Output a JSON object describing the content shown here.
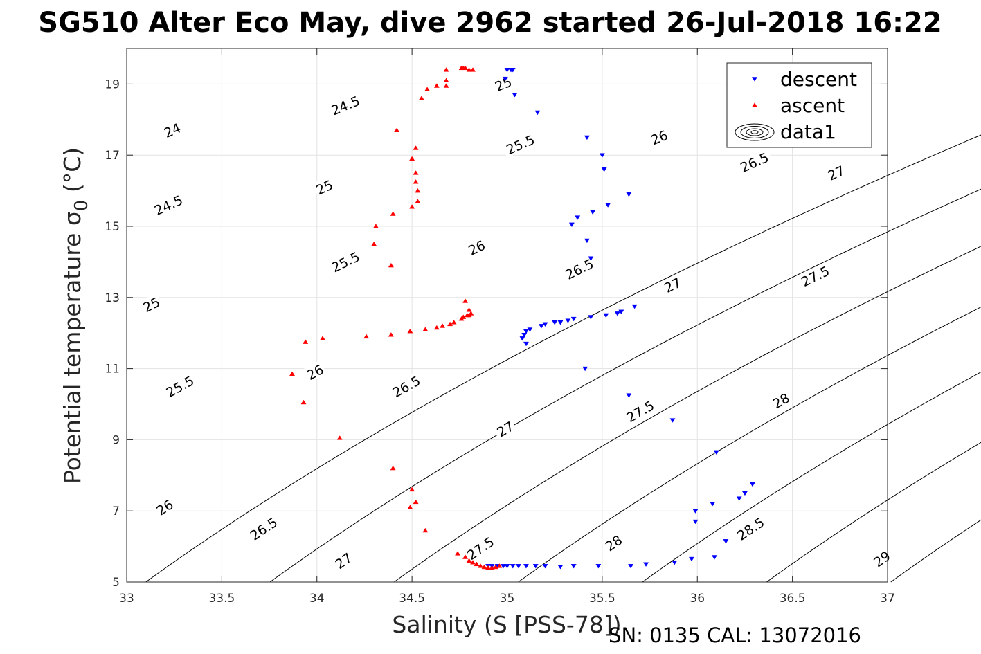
{
  "chart_data": {
    "type": "scatter",
    "title": "SG510 Alter Eco May, dive 2962 started 26-Jul-2018 16:22",
    "xlabel": "Salinity (S [PSS-78])",
    "ylabel_prefix": "Potential temperature ",
    "ylabel_symbol": "σ",
    "ylabel_sub": "0",
    "ylabel_suffix": " (°C)",
    "xlim": [
      33,
      37
    ],
    "ylim": [
      5,
      20
    ],
    "xticks": [
      33,
      33.5,
      34,
      34.5,
      35,
      35.5,
      36,
      36.5,
      37
    ],
    "xtick_labels": [
      "33",
      "33.5",
      "34",
      "34.5",
      "35",
      "35.5",
      "36",
      "36.5",
      "37"
    ],
    "yticks": [
      5,
      7,
      9,
      11,
      13,
      15,
      17,
      19
    ],
    "ytick_labels": [
      "5",
      "7",
      "9",
      "11",
      "13",
      "15",
      "17",
      "19"
    ],
    "grid": true,
    "legend_position": "top-right",
    "footer": "SN: 0135  CAL: 13072016",
    "series": [
      {
        "name": "descent",
        "marker": "triangle-down",
        "color": "#0000ff",
        "points": [
          [
            35.0,
            19.4
          ],
          [
            35.02,
            19.4
          ],
          [
            35.03,
            19.4
          ],
          [
            34.99,
            19.15
          ],
          [
            35.04,
            18.7
          ],
          [
            35.16,
            18.2
          ],
          [
            35.42,
            17.5
          ],
          [
            35.5,
            17.0
          ],
          [
            35.51,
            16.6
          ],
          [
            35.64,
            15.9
          ],
          [
            35.53,
            15.6
          ],
          [
            35.45,
            15.4
          ],
          [
            35.37,
            15.25
          ],
          [
            35.34,
            15.05
          ],
          [
            35.42,
            14.6
          ],
          [
            35.44,
            14.1
          ],
          [
            35.41,
            11.0
          ],
          [
            35.1,
            11.7
          ],
          [
            35.08,
            11.85
          ],
          [
            35.09,
            11.95
          ],
          [
            35.1,
            12.05
          ],
          [
            35.12,
            12.1
          ],
          [
            35.18,
            12.2
          ],
          [
            35.2,
            12.25
          ],
          [
            35.25,
            12.3
          ],
          [
            35.28,
            12.3
          ],
          [
            35.32,
            12.35
          ],
          [
            35.35,
            12.4
          ],
          [
            35.44,
            12.45
          ],
          [
            35.52,
            12.5
          ],
          [
            35.58,
            12.55
          ],
          [
            35.6,
            12.6
          ],
          [
            35.67,
            12.75
          ],
          [
            35.64,
            10.25
          ],
          [
            35.87,
            9.55
          ],
          [
            36.1,
            8.65
          ],
          [
            36.29,
            7.75
          ],
          [
            36.25,
            7.5
          ],
          [
            36.22,
            7.35
          ],
          [
            36.08,
            7.2
          ],
          [
            35.99,
            7.0
          ],
          [
            35.99,
            6.7
          ],
          [
            36.15,
            6.15
          ],
          [
            36.09,
            5.7
          ],
          [
            35.97,
            5.65
          ],
          [
            35.88,
            5.55
          ],
          [
            35.73,
            5.5
          ],
          [
            35.65,
            5.45
          ],
          [
            35.48,
            5.45
          ],
          [
            35.35,
            5.45
          ],
          [
            35.28,
            5.43
          ],
          [
            35.2,
            5.45
          ],
          [
            35.15,
            5.45
          ],
          [
            35.1,
            5.45
          ],
          [
            35.06,
            5.45
          ],
          [
            35.03,
            5.45
          ],
          [
            35.0,
            5.45
          ],
          [
            34.98,
            5.45
          ],
          [
            34.95,
            5.45
          ],
          [
            34.92,
            5.45
          ],
          [
            34.9,
            5.45
          ]
        ]
      },
      {
        "name": "ascent",
        "marker": "triangle-up",
        "color": "#ff0000",
        "points": [
          [
            34.78,
            19.45
          ],
          [
            34.77,
            19.45
          ],
          [
            34.76,
            19.45
          ],
          [
            34.8,
            19.4
          ],
          [
            34.82,
            19.4
          ],
          [
            34.68,
            19.4
          ],
          [
            34.68,
            19.1
          ],
          [
            34.68,
            18.95
          ],
          [
            34.63,
            18.95
          ],
          [
            34.58,
            18.85
          ],
          [
            34.55,
            18.6
          ],
          [
            34.42,
            17.7
          ],
          [
            34.52,
            17.2
          ],
          [
            34.5,
            16.9
          ],
          [
            34.52,
            16.5
          ],
          [
            34.52,
            16.25
          ],
          [
            34.53,
            16.0
          ],
          [
            34.53,
            15.7
          ],
          [
            34.5,
            15.55
          ],
          [
            34.4,
            15.35
          ],
          [
            34.31,
            15.0
          ],
          [
            34.3,
            14.5
          ],
          [
            34.39,
            13.9
          ],
          [
            34.78,
            12.9
          ],
          [
            34.8,
            12.65
          ],
          [
            34.8,
            12.5
          ],
          [
            34.81,
            12.55
          ],
          [
            34.79,
            12.5
          ],
          [
            34.77,
            12.45
          ],
          [
            34.76,
            12.4
          ],
          [
            34.72,
            12.3
          ],
          [
            34.7,
            12.25
          ],
          [
            34.66,
            12.2
          ],
          [
            34.63,
            12.15
          ],
          [
            34.57,
            12.1
          ],
          [
            34.49,
            12.05
          ],
          [
            34.39,
            11.95
          ],
          [
            34.26,
            11.9
          ],
          [
            34.03,
            11.85
          ],
          [
            33.94,
            11.75
          ],
          [
            33.87,
            10.85
          ],
          [
            33.93,
            10.05
          ],
          [
            34.12,
            9.05
          ],
          [
            34.4,
            8.2
          ],
          [
            34.5,
            7.6
          ],
          [
            34.52,
            7.25
          ],
          [
            34.49,
            7.1
          ],
          [
            34.57,
            6.45
          ],
          [
            34.74,
            5.8
          ],
          [
            34.78,
            5.7
          ],
          [
            34.8,
            5.6
          ],
          [
            34.82,
            5.55
          ],
          [
            34.84,
            5.5
          ],
          [
            34.86,
            5.45
          ],
          [
            34.88,
            5.42
          ],
          [
            34.9,
            5.4
          ],
          [
            34.92,
            5.4
          ],
          [
            34.94,
            5.42
          ],
          [
            34.96,
            5.45
          ]
        ]
      },
      {
        "name": "data1",
        "marker": "contour",
        "color": "#000000",
        "description_levels": [
          24,
          24.5,
          25,
          25.5,
          26,
          26.5,
          27,
          27.5,
          28,
          28.5,
          29
        ]
      }
    ],
    "contour_levels": [
      24,
      24.5,
      25,
      25.5,
      26,
      26.5,
      27,
      27.5,
      28,
      28.5,
      29
    ],
    "contour_labels": [
      {
        "text": "24",
        "s": 33.24,
        "t": 17.7
      },
      {
        "text": "24.5",
        "s": 33.22,
        "t": 15.6
      },
      {
        "text": "24.5",
        "s": 34.15,
        "t": 18.4
      },
      {
        "text": "25",
        "s": 33.13,
        "t": 12.8
      },
      {
        "text": "25",
        "s": 34.04,
        "t": 16.1
      },
      {
        "text": "25",
        "s": 34.98,
        "t": 19.0
      },
      {
        "text": "25.5",
        "s": 33.28,
        "t": 10.5
      },
      {
        "text": "25.5",
        "s": 34.15,
        "t": 14.0
      },
      {
        "text": "25.5",
        "s": 35.07,
        "t": 17.3
      },
      {
        "text": "26",
        "s": 33.2,
        "t": 7.1
      },
      {
        "text": "26",
        "s": 33.99,
        "t": 10.9
      },
      {
        "text": "26",
        "s": 34.84,
        "t": 14.4
      },
      {
        "text": "26",
        "s": 35.8,
        "t": 17.5
      },
      {
        "text": "26.5",
        "s": 33.72,
        "t": 6.5
      },
      {
        "text": "26.5",
        "s": 34.47,
        "t": 10.5
      },
      {
        "text": "26.5",
        "s": 35.38,
        "t": 13.8
      },
      {
        "text": "26.5",
        "s": 36.3,
        "t": 16.8
      },
      {
        "text": "27",
        "s": 34.14,
        "t": 5.6
      },
      {
        "text": "27",
        "s": 34.99,
        "t": 9.3
      },
      {
        "text": "27",
        "s": 35.87,
        "t": 13.35
      },
      {
        "text": "27",
        "s": 36.73,
        "t": 16.5
      },
      {
        "text": "27.5",
        "s": 34.86,
        "t": 5.95
      },
      {
        "text": "27.5",
        "s": 35.7,
        "t": 9.8
      },
      {
        "text": "27.5",
        "s": 36.62,
        "t": 13.6
      },
      {
        "text": "28",
        "s": 35.56,
        "t": 6.1
      },
      {
        "text": "28",
        "s": 36.44,
        "t": 10.1
      },
      {
        "text": "28.5",
        "s": 36.28,
        "t": 6.5
      },
      {
        "text": "29",
        "s": 36.97,
        "t": 5.65
      }
    ]
  }
}
